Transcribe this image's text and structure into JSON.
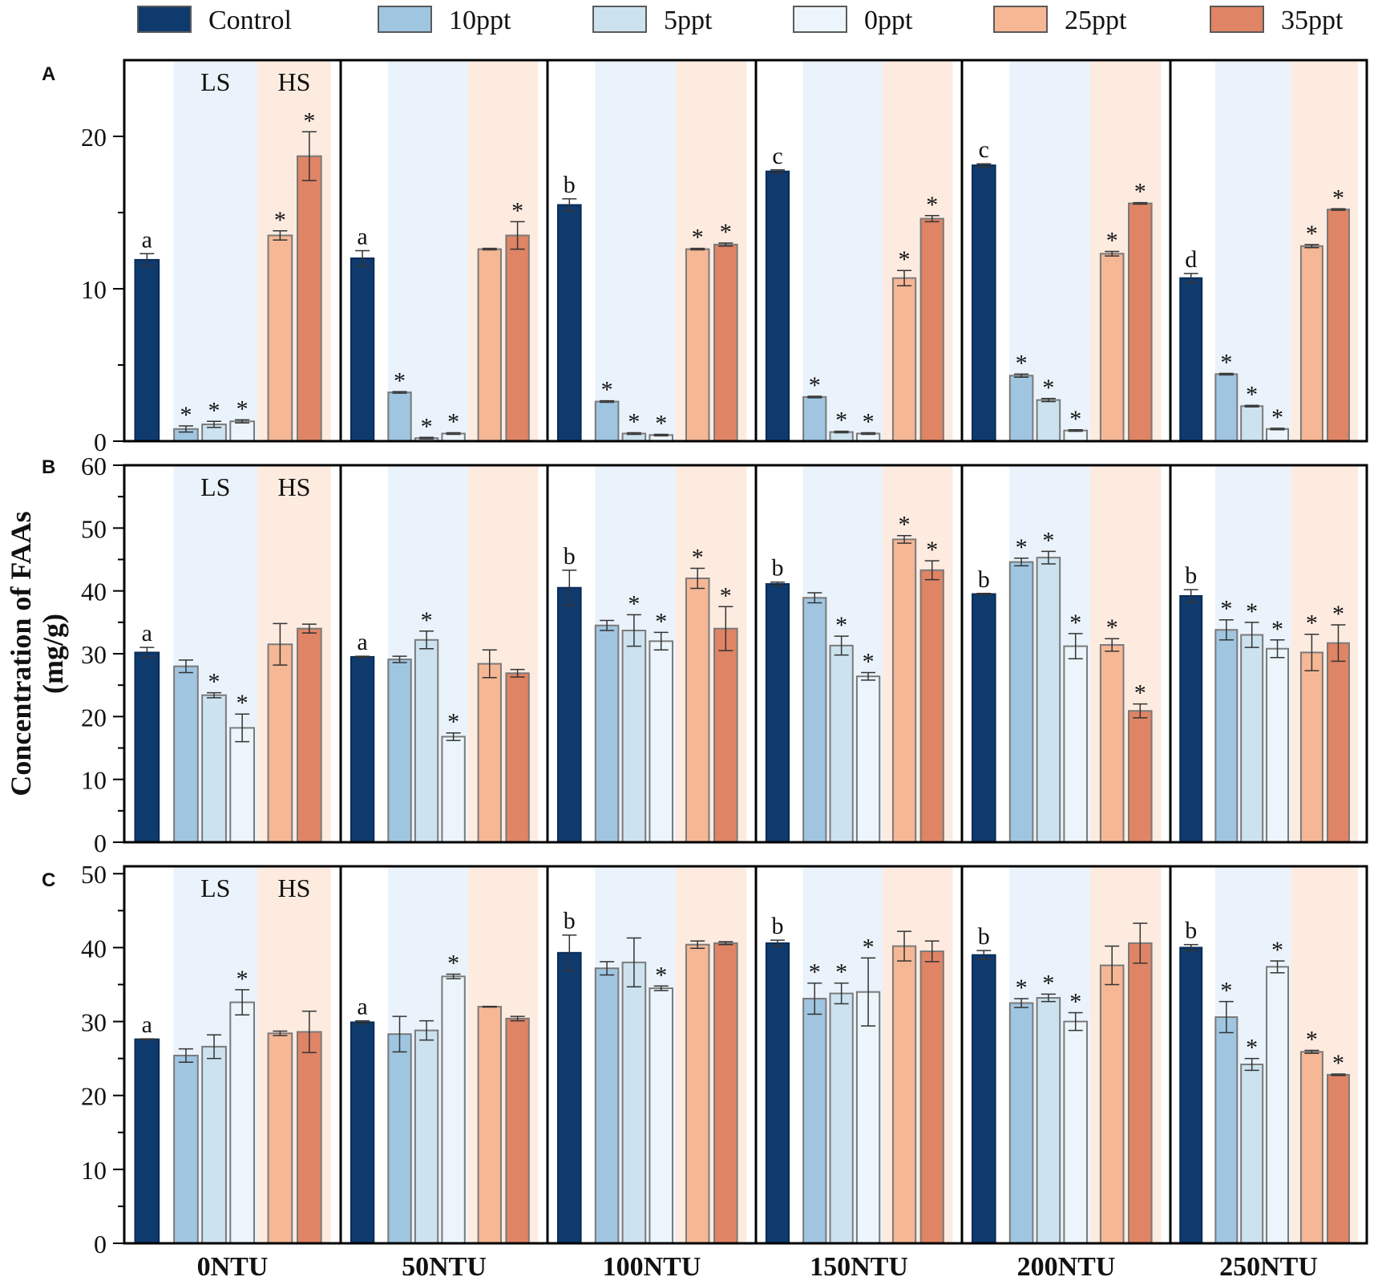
{
  "legend": [
    {
      "label": "Control",
      "color": "#0e3a6e"
    },
    {
      "label": "10ppt",
      "color": "#9fc5e1"
    },
    {
      "label": "5ppt",
      "color": "#cce2ef"
    },
    {
      "label": "0ppt",
      "color": "#ebf5fb"
    },
    {
      "label": "25ppt",
      "color": "#f6b795"
    },
    {
      "label": "35ppt",
      "color": "#df8465"
    }
  ],
  "colors": {
    "ls_band": "#eaf3fb",
    "hs_band": "#fdebe0",
    "bar_edge": "#7a7a7a",
    "axis": "#000000",
    "star": "#555555"
  },
  "group_labels": [
    "0NTU",
    "50NTU",
    "100NTU",
    "150NTU",
    "200NTU",
    "250NTU"
  ],
  "ylabel": "Concentration of FAAs\n(mg/g)",
  "chart_data": [
    {
      "type": "bar",
      "panel": "A",
      "band_labels": {
        "ls": "LS",
        "hs": "HS"
      },
      "categories": [
        "0NTU",
        "50NTU",
        "100NTU",
        "150NTU",
        "200NTU",
        "250NTU"
      ],
      "series_names": [
        "Control",
        "10ppt",
        "5ppt",
        "0ppt",
        "25ppt",
        "35ppt"
      ],
      "ylim": [
        0,
        25
      ],
      "yticks": [
        0,
        10,
        20
      ],
      "values": [
        [
          11.9,
          0.8,
          1.1,
          1.3,
          13.5,
          18.7
        ],
        [
          12.0,
          3.2,
          0.2,
          0.5,
          12.6,
          13.5
        ],
        [
          15.5,
          2.6,
          0.5,
          0.4,
          12.6,
          12.9
        ],
        [
          17.7,
          2.9,
          0.6,
          0.5,
          10.7,
          14.6
        ],
        [
          18.1,
          4.3,
          2.7,
          0.7,
          12.3,
          15.6
        ],
        [
          10.7,
          4.4,
          2.3,
          0.8,
          12.8,
          15.2
        ]
      ],
      "errors": [
        [
          0.4,
          0.2,
          0.2,
          0.1,
          0.3,
          1.6
        ],
        [
          0.5,
          0.05,
          0.05,
          0.05,
          0.05,
          0.9
        ],
        [
          0.4,
          0.05,
          0.05,
          0.05,
          0.05,
          0.1
        ],
        [
          0.1,
          0.05,
          0.05,
          0.05,
          0.5,
          0.2
        ],
        [
          0.1,
          0.1,
          0.1,
          0.05,
          0.15,
          0.05
        ],
        [
          0.3,
          0.05,
          0.05,
          0.05,
          0.1,
          0.05
        ]
      ],
      "stars": [
        [
          false,
          true,
          true,
          true,
          true,
          true
        ],
        [
          false,
          true,
          true,
          true,
          false,
          true
        ],
        [
          false,
          true,
          true,
          true,
          true,
          true
        ],
        [
          false,
          true,
          true,
          true,
          true,
          true
        ],
        [
          false,
          true,
          true,
          true,
          true,
          true
        ],
        [
          false,
          true,
          true,
          true,
          true,
          true
        ]
      ],
      "letters": [
        "a",
        "a",
        "b",
        "c",
        "c",
        "d"
      ]
    },
    {
      "type": "bar",
      "panel": "B",
      "band_labels": {
        "ls": "LS",
        "hs": "HS"
      },
      "categories": [
        "0NTU",
        "50NTU",
        "100NTU",
        "150NTU",
        "200NTU",
        "250NTU"
      ],
      "series_names": [
        "Control",
        "10ppt",
        "5ppt",
        "0ppt",
        "25ppt",
        "35ppt"
      ],
      "ylim": [
        0,
        60
      ],
      "yticks": [
        0,
        10,
        20,
        30,
        40,
        50,
        60
      ],
      "values": [
        [
          30.2,
          28.0,
          23.4,
          18.2,
          31.5,
          34.0
        ],
        [
          29.5,
          29.1,
          32.2,
          16.8,
          28.4,
          26.9
        ],
        [
          40.5,
          34.5,
          33.7,
          32.0,
          42.0,
          34.0
        ],
        [
          41.1,
          38.9,
          31.3,
          26.4,
          48.2,
          43.3
        ],
        [
          39.5,
          44.6,
          45.3,
          31.2,
          31.4,
          20.9
        ],
        [
          39.2,
          33.8,
          33.0,
          30.8,
          30.2,
          31.7
        ]
      ],
      "errors": [
        [
          0.8,
          1.0,
          0.4,
          2.2,
          3.3,
          0.7
        ],
        [
          0.1,
          0.5,
          1.4,
          0.6,
          2.2,
          0.6
        ],
        [
          2.8,
          0.8,
          2.5,
          1.4,
          1.6,
          3.5
        ],
        [
          0.3,
          0.8,
          1.5,
          0.6,
          0.6,
          1.5
        ],
        [
          0.1,
          0.6,
          1.0,
          2.0,
          1.0,
          1.1
        ],
        [
          1.0,
          1.6,
          2.0,
          1.4,
          2.9,
          2.9
        ]
      ],
      "stars": [
        [
          false,
          false,
          true,
          true,
          false,
          false
        ],
        [
          false,
          false,
          true,
          true,
          false,
          false
        ],
        [
          false,
          false,
          true,
          true,
          true,
          true
        ],
        [
          false,
          false,
          true,
          true,
          true,
          true
        ],
        [
          false,
          true,
          true,
          true,
          true,
          true
        ],
        [
          false,
          true,
          true,
          true,
          true,
          true
        ]
      ],
      "letters": [
        "a",
        "a",
        "b",
        "b",
        "b",
        "b"
      ]
    },
    {
      "type": "bar",
      "panel": "C",
      "band_labels": {
        "ls": "LS",
        "hs": "HS"
      },
      "categories": [
        "0NTU",
        "50NTU",
        "100NTU",
        "150NTU",
        "200NTU",
        "250NTU"
      ],
      "series_names": [
        "Control",
        "10ppt",
        "5ppt",
        "0ppt",
        "25ppt",
        "35ppt"
      ],
      "ylim": [
        0,
        51
      ],
      "yticks": [
        0,
        10,
        20,
        30,
        40,
        50
      ],
      "values": [
        [
          27.6,
          25.4,
          26.6,
          32.6,
          28.4,
          28.6
        ],
        [
          29.9,
          28.3,
          28.8,
          36.1,
          32.0,
          30.4
        ],
        [
          39.3,
          37.2,
          38.0,
          34.5,
          40.4,
          40.6
        ],
        [
          40.6,
          33.1,
          33.8,
          34.0,
          40.2,
          39.5
        ],
        [
          39.0,
          32.5,
          33.2,
          30.0,
          37.6,
          40.6
        ],
        [
          40.0,
          30.6,
          24.2,
          37.4,
          25.9,
          22.8
        ]
      ],
      "errors": [
        [
          0.05,
          0.9,
          1.6,
          1.7,
          0.3,
          2.8
        ],
        [
          0.2,
          2.4,
          1.3,
          0.3,
          0.05,
          0.3
        ],
        [
          2.4,
          0.9,
          3.3,
          0.3,
          0.5,
          0.2
        ],
        [
          0.4,
          2.1,
          1.4,
          4.6,
          2.0,
          1.4
        ],
        [
          0.6,
          0.6,
          0.5,
          1.2,
          2.6,
          2.7
        ],
        [
          0.4,
          2.1,
          0.8,
          0.8,
          0.2,
          0.1
        ]
      ],
      "stars": [
        [
          false,
          false,
          false,
          true,
          false,
          false
        ],
        [
          false,
          false,
          false,
          true,
          false,
          false
        ],
        [
          false,
          false,
          false,
          true,
          false,
          false
        ],
        [
          false,
          true,
          true,
          true,
          false,
          false
        ],
        [
          false,
          true,
          true,
          true,
          false,
          false
        ],
        [
          false,
          true,
          true,
          true,
          true,
          true
        ]
      ],
      "letters": [
        "a",
        "a",
        "b",
        "b",
        "b",
        "b"
      ]
    }
  ]
}
